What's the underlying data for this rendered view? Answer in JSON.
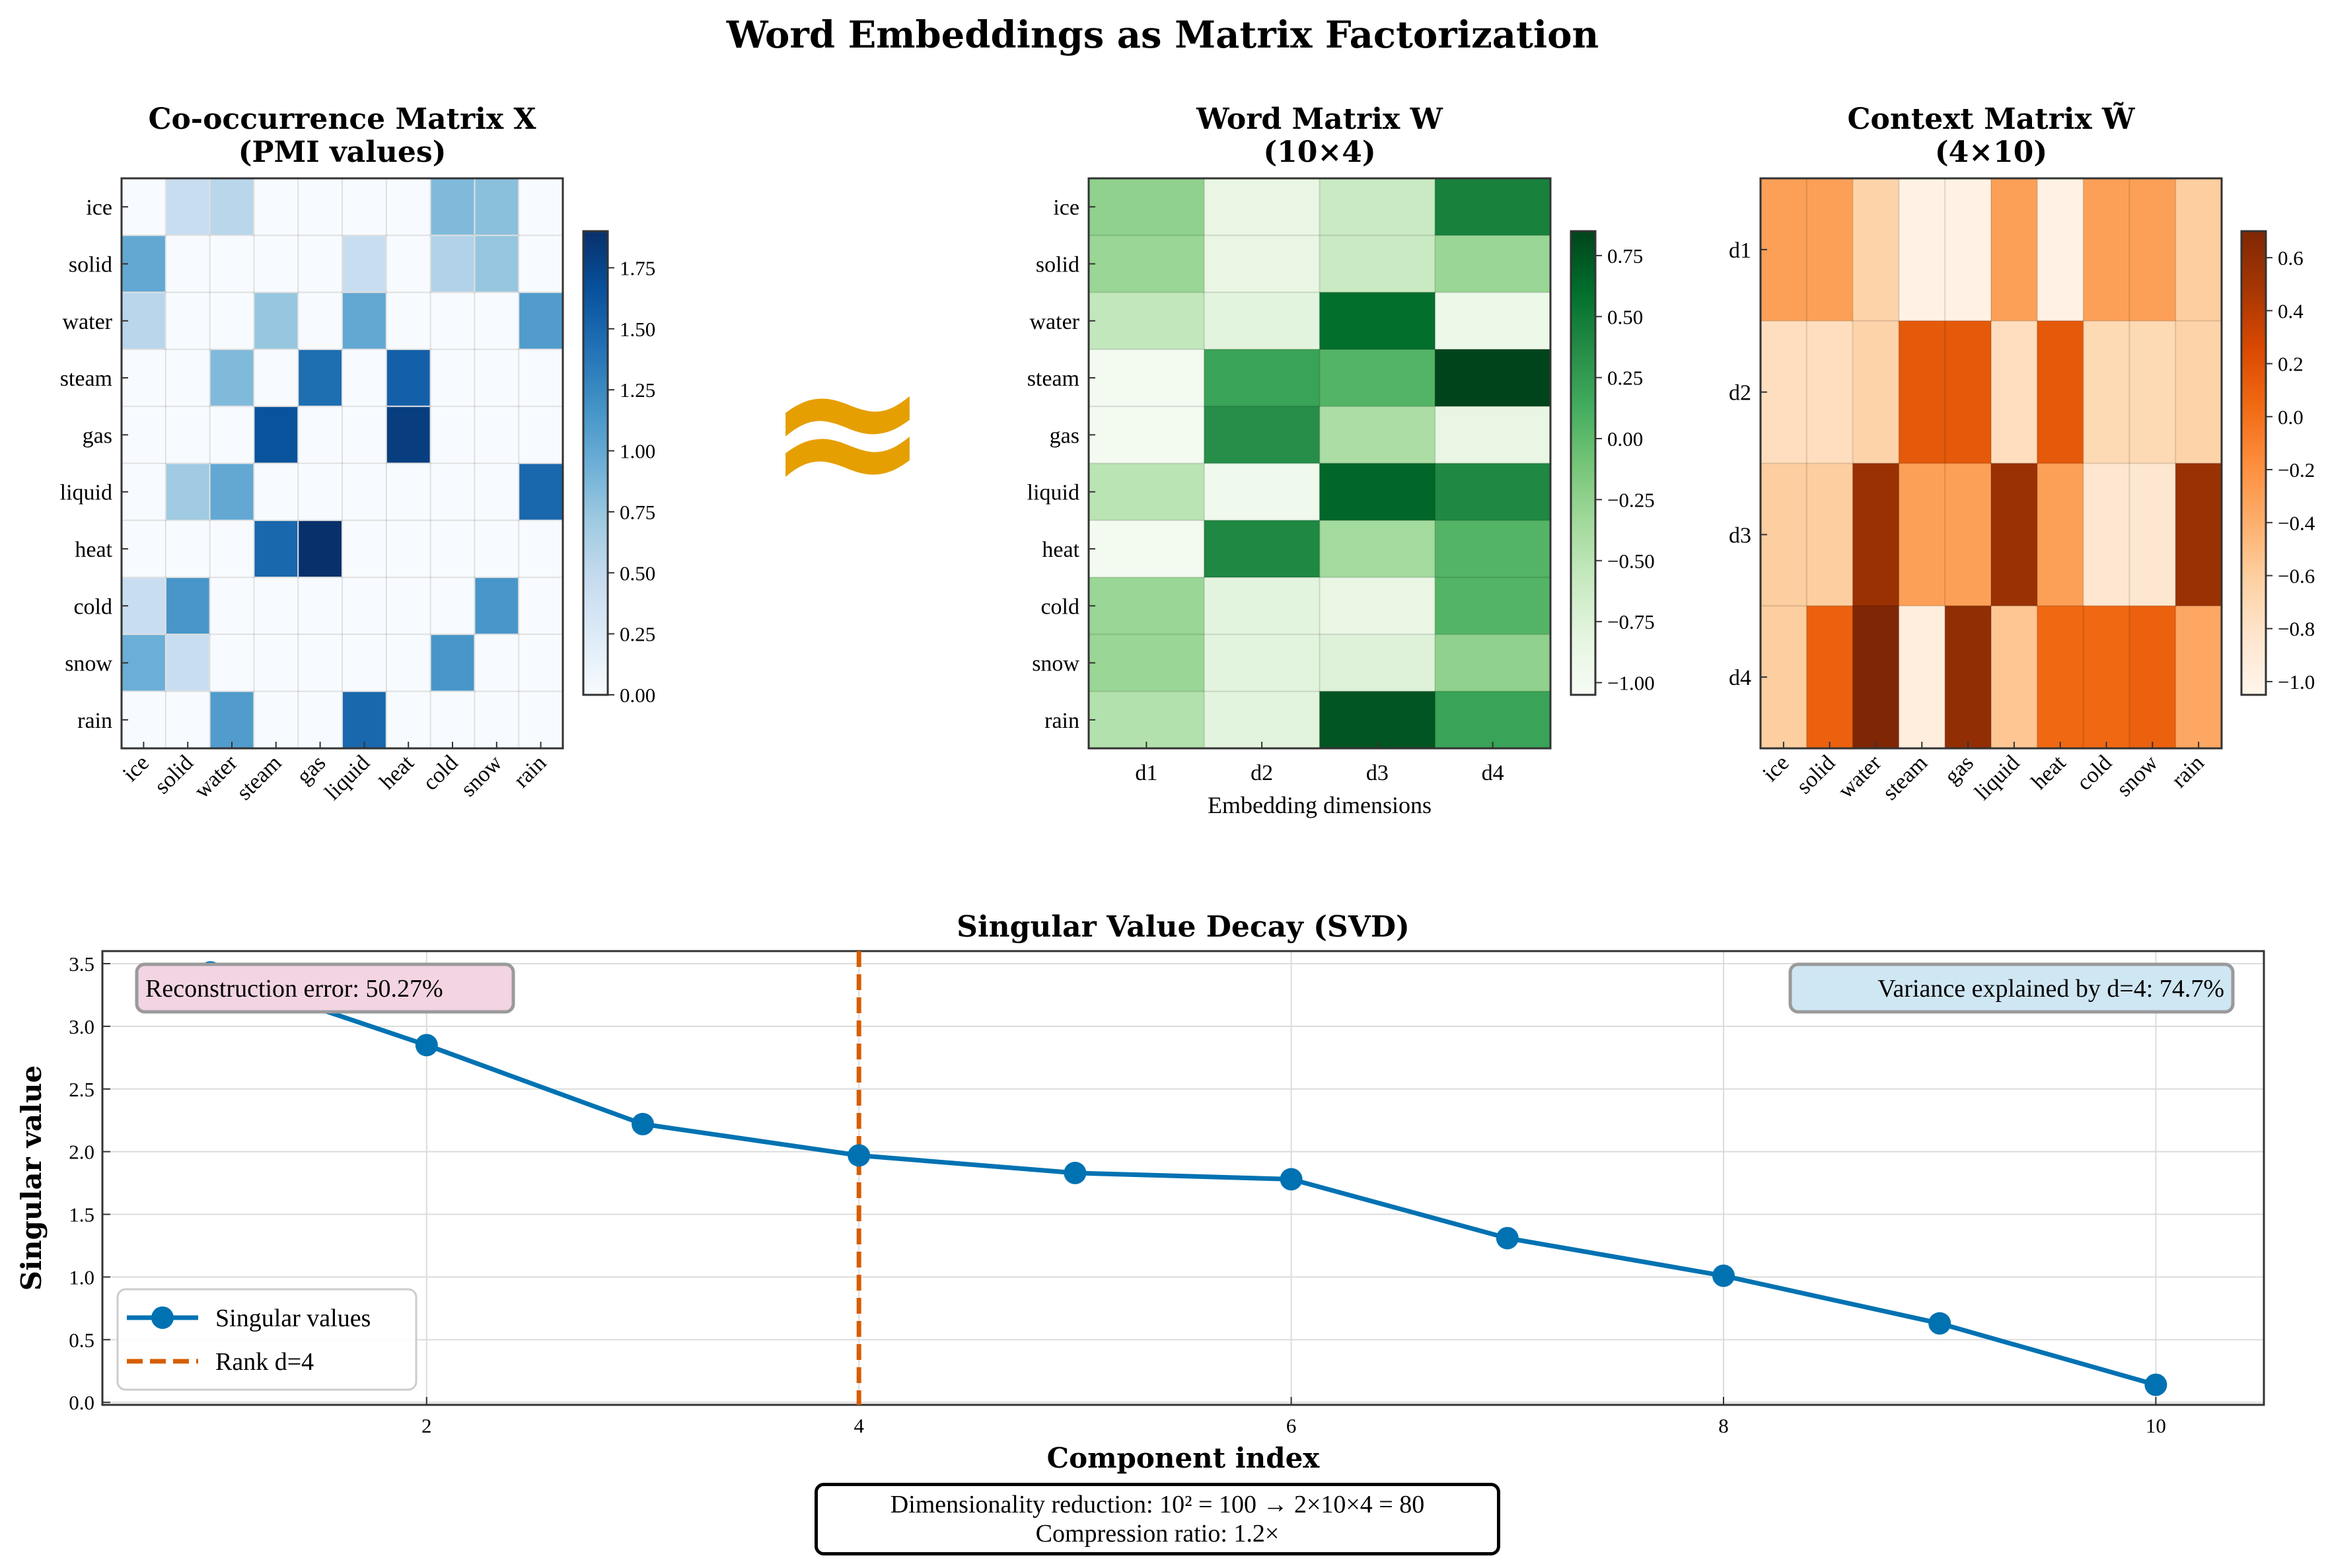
{
  "suptitle": "Word Embeddings as Matrix Factorization",
  "approx_symbol": "≈",
  "colors": {
    "accent_approx": "#E69F00",
    "svd_line": "#0072B2",
    "rank_line": "#D55E00",
    "err_box": "#F2D4E2",
    "var_box": "#CFE6F3"
  },
  "chart_data": [
    {
      "type": "heatmap",
      "title": "Co-occurrence Matrix X\n(PMI values)",
      "cmap": "Blues",
      "rows": [
        "ice",
        "solid",
        "water",
        "steam",
        "gas",
        "liquid",
        "heat",
        "cold",
        "snow",
        "rain"
      ],
      "cols": [
        "ice",
        "solid",
        "water",
        "steam",
        "gas",
        "liquid",
        "heat",
        "cold",
        "snow",
        "rain"
      ],
      "vmin": 0,
      "vmax": 1.9,
      "colorbar_ticks": [
        0.0,
        0.25,
        0.5,
        0.75,
        1.0,
        1.25,
        1.5,
        1.75
      ],
      "values": [
        [
          0,
          0.45,
          0.55,
          0,
          0,
          0,
          0,
          0.85,
          0.8,
          0
        ],
        [
          1.0,
          0,
          0,
          0,
          0,
          0.45,
          0,
          0.6,
          0.75,
          0
        ],
        [
          0.55,
          0,
          0,
          0.75,
          0,
          1.0,
          0,
          0,
          0,
          1.1
        ],
        [
          0,
          0,
          0.85,
          0,
          1.45,
          0,
          1.55,
          0,
          0,
          0
        ],
        [
          0,
          0,
          0,
          1.65,
          0,
          0,
          1.8,
          0,
          0,
          0
        ],
        [
          0,
          0.7,
          1.0,
          0,
          0,
          0,
          0,
          0,
          0,
          1.5
        ],
        [
          0,
          0,
          0,
          1.5,
          1.9,
          0,
          0,
          0,
          0,
          0
        ],
        [
          0.45,
          1.15,
          0,
          0,
          0,
          0,
          0,
          0,
          1.15,
          0
        ],
        [
          0.95,
          0.45,
          0,
          0,
          0,
          0,
          0,
          1.15,
          0,
          0
        ],
        [
          0,
          0,
          1.1,
          0,
          0,
          1.5,
          0,
          0,
          0,
          0
        ]
      ]
    },
    {
      "type": "heatmap",
      "title": "Word Matrix W\n(10×4)",
      "cmap": "Greens",
      "rows": [
        "ice",
        "solid",
        "water",
        "steam",
        "gas",
        "liquid",
        "heat",
        "cold",
        "snow",
        "rain"
      ],
      "cols": [
        "d1",
        "d2",
        "d3",
        "d4"
      ],
      "xlabel": "Embedding dimensions",
      "vmin": -1.05,
      "vmax": 0.85,
      "colorbar_ticks": [
        0.75,
        0.5,
        0.25,
        0.0,
        -0.25,
        -0.5,
        -0.75,
        -1.0
      ],
      "colorbar_tick_labels": [
        "0.75",
        "0.50",
        "0.25",
        "0.00",
        "−0.25",
        "−0.50",
        "−0.75",
        "−1.00"
      ],
      "values": [
        [
          -0.25,
          -0.85,
          -0.6,
          0.45
        ],
        [
          -0.3,
          -0.85,
          -0.6,
          -0.3
        ],
        [
          -0.55,
          -0.8,
          0.6,
          -0.9
        ],
        [
          -1.0,
          0.2,
          0.05,
          0.85
        ],
        [
          -1.0,
          0.35,
          -0.4,
          -0.85
        ],
        [
          -0.5,
          -0.95,
          0.65,
          0.4
        ],
        [
          -1.0,
          0.4,
          -0.35,
          0.05
        ],
        [
          -0.3,
          -0.8,
          -0.85,
          0.05
        ],
        [
          -0.3,
          -0.8,
          -0.75,
          -0.25
        ],
        [
          -0.45,
          -0.8,
          0.75,
          0.2
        ]
      ]
    },
    {
      "type": "heatmap",
      "title": "Context Matrix W̃\n(4×10)",
      "cmap": "Oranges",
      "rows": [
        "d1",
        "d2",
        "d3",
        "d4"
      ],
      "cols": [
        "ice",
        "solid",
        "water",
        "steam",
        "gas",
        "liquid",
        "heat",
        "cold",
        "snow",
        "rain"
      ],
      "vmin": -1.05,
      "vmax": 0.7,
      "colorbar_ticks": [
        0.6,
        0.4,
        0.2,
        0.0,
        -0.2,
        -0.4,
        -0.6,
        -0.8,
        -1.0
      ],
      "colorbar_tick_labels": [
        "0.6",
        "0.4",
        "0.2",
        "0.0",
        "−0.2",
        "−0.4",
        "−0.6",
        "−0.8",
        "−1.0"
      ],
      "values": [
        [
          -0.3,
          -0.3,
          -0.65,
          -1.0,
          -1.0,
          -0.3,
          -1.0,
          -0.3,
          -0.3,
          -0.6
        ],
        [
          -0.75,
          -0.75,
          -0.65,
          0.15,
          0.15,
          -0.75,
          0.15,
          -0.7,
          -0.7,
          -0.65
        ],
        [
          -0.6,
          -0.6,
          0.55,
          -0.3,
          -0.3,
          0.55,
          -0.3,
          -0.85,
          -0.85,
          0.55
        ],
        [
          -0.6,
          0.1,
          0.7,
          -0.95,
          0.6,
          -0.55,
          0.05,
          0.05,
          0.1,
          -0.35
        ]
      ]
    },
    {
      "type": "line",
      "title": "Singular Value Decay (SVD)",
      "xlabel": "Component index",
      "ylabel": "Singular value",
      "x": [
        1,
        2,
        3,
        4,
        5,
        6,
        7,
        8,
        9,
        10
      ],
      "series": [
        {
          "name": "Singular values",
          "values": [
            3.43,
            2.85,
            2.22,
            1.97,
            1.83,
            1.78,
            1.31,
            1.01,
            0.63,
            0.14
          ]
        }
      ],
      "vline": {
        "x": 4,
        "name": "Rank d=4"
      },
      "xlim": [
        0.5,
        10.5
      ],
      "ylim": [
        -0.02,
        3.6
      ],
      "xticks": [
        2,
        4,
        6,
        8,
        10
      ],
      "yticks": [
        0.0,
        0.5,
        1.0,
        1.5,
        2.0,
        2.5,
        3.0,
        3.5
      ],
      "grid": true,
      "legend_position": "lower-left",
      "annotations": {
        "left": "Reconstruction error: 50.27%",
        "right": "Variance explained by d=4: 74.7%"
      }
    }
  ],
  "summary": {
    "line1": "Dimensionality reduction: 10² = 100 → 2×10×4 = 80",
    "line2": "Compression ratio: 1.2×"
  }
}
